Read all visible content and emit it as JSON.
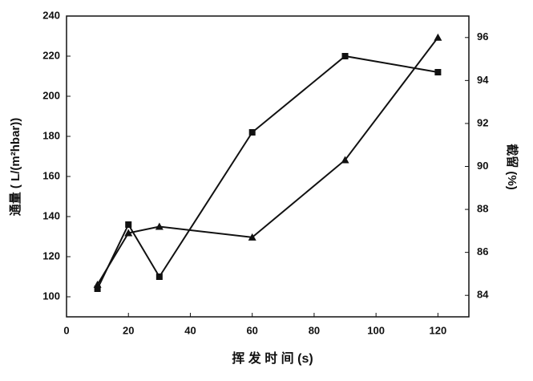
{
  "chart_data": {
    "type": "line",
    "x_label": "挥 发 时 间 (s)",
    "y_label": "通量 ( L/(m²hbar))",
    "y2_label": "截留 (%)",
    "xlim": [
      0,
      130
    ],
    "xticks": [
      0,
      20,
      40,
      60,
      80,
      100,
      120
    ],
    "ylim": [
      90,
      240
    ],
    "yticks": [
      100,
      120,
      140,
      160,
      180,
      200,
      220,
      240
    ],
    "y2lim": [
      83,
      97
    ],
    "y2ticks": [
      84,
      86,
      88,
      90,
      92,
      94,
      96
    ],
    "x": [
      10,
      20,
      30,
      60,
      90,
      120
    ],
    "series": [
      {
        "color": "#111111",
        "marker": "square",
        "values": [
          104,
          136,
          110,
          182,
          220,
          212
        ]
      },
      {
        "color": "#111111",
        "marker": "triangle",
        "axis": "y2",
        "values": [
          84.5,
          86.9,
          87.2,
          86.7,
          90.3,
          96.0
        ]
      }
    ]
  }
}
